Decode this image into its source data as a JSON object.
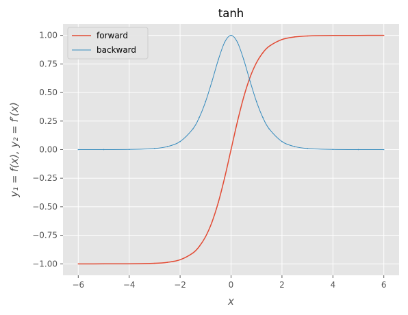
{
  "chart_data": {
    "type": "line",
    "title": "tanh",
    "xlabel": "x",
    "ylabel": "y₁ = f(x), y₂ = f′(x)",
    "xlim": [
      -6.6,
      6.6
    ],
    "ylim": [
      -1.1,
      1.1
    ],
    "xticks": [
      -6,
      -4,
      -2,
      0,
      2,
      4,
      6
    ],
    "xtick_labels": [
      "−6",
      "−4",
      "−2",
      "0",
      "2",
      "4",
      "6"
    ],
    "yticks": [
      -1.0,
      -0.75,
      -0.5,
      -0.25,
      0.0,
      0.25,
      0.5,
      0.75,
      1.0
    ],
    "ytick_labels": [
      "−1.00",
      "−0.75",
      "−0.50",
      "−0.25",
      "0.00",
      "0.25",
      "0.50",
      "0.75",
      "1.00"
    ],
    "grid": true,
    "legend_position": "top-left",
    "x": [
      -6,
      -5,
      -4,
      -3,
      -2.5,
      -2,
      -1.5,
      -1.25,
      -1,
      -0.75,
      -0.5,
      -0.25,
      0,
      0.25,
      0.5,
      0.75,
      1,
      1.25,
      1.5,
      2,
      2.5,
      3,
      4,
      5,
      6
    ],
    "series": [
      {
        "name": "forward",
        "color": "#E24A33",
        "values": [
          -1.0,
          -0.9999,
          -0.9993,
          -0.9951,
          -0.9866,
          -0.964,
          -0.9051,
          -0.8483,
          -0.7616,
          -0.6351,
          -0.4621,
          -0.2449,
          0.0,
          0.2449,
          0.4621,
          0.6351,
          0.7616,
          0.8483,
          0.9051,
          0.964,
          0.9866,
          0.9951,
          0.9993,
          0.9999,
          1.0
        ]
      },
      {
        "name": "backward",
        "color": "#348ABD",
        "values": [
          0.0,
          0.0002,
          0.0013,
          0.0099,
          0.0266,
          0.0707,
          0.1807,
          0.2804,
          0.42,
          0.5967,
          0.7864,
          0.94,
          1.0,
          0.94,
          0.7864,
          0.5967,
          0.42,
          0.2804,
          0.1807,
          0.0707,
          0.0266,
          0.0099,
          0.0013,
          0.0002,
          0.0
        ]
      }
    ],
    "colors": {
      "plot_background": "#E5E5E5",
      "grid": "#FFFFFF",
      "tick_label": "#555555"
    }
  }
}
